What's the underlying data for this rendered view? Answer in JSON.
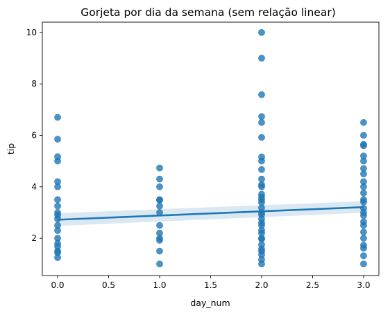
{
  "chart_data": {
    "type": "scatter",
    "title": "Gorjeta por dia da semana (sem relação linear)",
    "xlabel": "day_num",
    "ylabel": "tip",
    "xlim": [
      -0.15,
      3.15
    ],
    "ylim": [
      0.55,
      10.4
    ],
    "xticks": [
      0.0,
      0.5,
      1.0,
      1.5,
      2.0,
      2.5,
      3.0
    ],
    "xtick_labels": [
      "0.0",
      "0.5",
      "1.0",
      "1.5",
      "2.0",
      "2.5",
      "3.0"
    ],
    "yticks": [
      2,
      4,
      6,
      8,
      10
    ],
    "ytick_labels": [
      "2",
      "4",
      "6",
      "8",
      "10"
    ],
    "grid": false,
    "legend": "none",
    "colors": {
      "points": "#1f77b4",
      "line": "#1f77b4",
      "band": "#1f77b4"
    },
    "points": [
      {
        "x": 0,
        "y": 6.7
      },
      {
        "x": 0,
        "y": 5.85
      },
      {
        "x": 0,
        "y": 5.17
      },
      {
        "x": 0,
        "y": 5.0
      },
      {
        "x": 0,
        "y": 4.2
      },
      {
        "x": 0,
        "y": 4.0
      },
      {
        "x": 0,
        "y": 3.5
      },
      {
        "x": 0,
        "y": 3.25
      },
      {
        "x": 0,
        "y": 3.0
      },
      {
        "x": 0,
        "y": 2.9
      },
      {
        "x": 0,
        "y": 2.75
      },
      {
        "x": 0,
        "y": 2.5
      },
      {
        "x": 0,
        "y": 2.3
      },
      {
        "x": 0,
        "y": 2.0
      },
      {
        "x": 0,
        "y": 1.8
      },
      {
        "x": 0,
        "y": 1.68
      },
      {
        "x": 0,
        "y": 1.5
      },
      {
        "x": 0,
        "y": 1.44
      },
      {
        "x": 0,
        "y": 1.25
      },
      {
        "x": 1,
        "y": 4.73
      },
      {
        "x": 1,
        "y": 4.3
      },
      {
        "x": 1,
        "y": 4.0
      },
      {
        "x": 1,
        "y": 3.5
      },
      {
        "x": 1,
        "y": 3.48
      },
      {
        "x": 1,
        "y": 3.25
      },
      {
        "x": 1,
        "y": 3.0
      },
      {
        "x": 1,
        "y": 2.5
      },
      {
        "x": 1,
        "y": 2.2
      },
      {
        "x": 1,
        "y": 2.0
      },
      {
        "x": 1,
        "y": 1.92
      },
      {
        "x": 1,
        "y": 1.5
      },
      {
        "x": 1,
        "y": 1.0
      },
      {
        "x": 2,
        "y": 10.0
      },
      {
        "x": 2,
        "y": 9.0
      },
      {
        "x": 2,
        "y": 7.58
      },
      {
        "x": 2,
        "y": 6.73
      },
      {
        "x": 2,
        "y": 6.5
      },
      {
        "x": 2,
        "y": 5.92
      },
      {
        "x": 2,
        "y": 5.16
      },
      {
        "x": 2,
        "y": 5.0
      },
      {
        "x": 2,
        "y": 4.67
      },
      {
        "x": 2,
        "y": 4.3
      },
      {
        "x": 2,
        "y": 4.08
      },
      {
        "x": 2,
        "y": 4.0
      },
      {
        "x": 2,
        "y": 3.71
      },
      {
        "x": 2,
        "y": 3.6
      },
      {
        "x": 2,
        "y": 3.5
      },
      {
        "x": 2,
        "y": 3.39
      },
      {
        "x": 2,
        "y": 3.18
      },
      {
        "x": 2,
        "y": 3.0
      },
      {
        "x": 2,
        "y": 2.92
      },
      {
        "x": 2,
        "y": 2.75
      },
      {
        "x": 2,
        "y": 2.6
      },
      {
        "x": 2,
        "y": 2.5
      },
      {
        "x": 2,
        "y": 2.31
      },
      {
        "x": 2,
        "y": 2.2
      },
      {
        "x": 2,
        "y": 2.0
      },
      {
        "x": 2,
        "y": 1.97
      },
      {
        "x": 2,
        "y": 1.75
      },
      {
        "x": 2,
        "y": 1.58
      },
      {
        "x": 2,
        "y": 1.5
      },
      {
        "x": 2,
        "y": 1.36
      },
      {
        "x": 2,
        "y": 1.17
      },
      {
        "x": 2,
        "y": 1.0
      },
      {
        "x": 3,
        "y": 6.5
      },
      {
        "x": 3,
        "y": 6.0
      },
      {
        "x": 3,
        "y": 5.65
      },
      {
        "x": 3,
        "y": 5.6
      },
      {
        "x": 3,
        "y": 5.2
      },
      {
        "x": 3,
        "y": 5.0
      },
      {
        "x": 3,
        "y": 4.71
      },
      {
        "x": 3,
        "y": 4.5
      },
      {
        "x": 3,
        "y": 4.2
      },
      {
        "x": 3,
        "y": 4.0
      },
      {
        "x": 3,
        "y": 3.76
      },
      {
        "x": 3,
        "y": 3.5
      },
      {
        "x": 3,
        "y": 3.41
      },
      {
        "x": 3,
        "y": 3.16
      },
      {
        "x": 3,
        "y": 3.0
      },
      {
        "x": 3,
        "y": 2.88
      },
      {
        "x": 3,
        "y": 2.64
      },
      {
        "x": 3,
        "y": 2.5
      },
      {
        "x": 3,
        "y": 2.24
      },
      {
        "x": 3,
        "y": 2.0
      },
      {
        "x": 3,
        "y": 1.73
      },
      {
        "x": 3,
        "y": 1.61
      },
      {
        "x": 3,
        "y": 1.32
      },
      {
        "x": 3,
        "y": 1.0
      }
    ],
    "regression": {
      "x": [
        0,
        3
      ],
      "y": [
        2.72,
        3.21
      ],
      "ci_lower": [
        2.48,
        2.99
      ],
      "ci_upper": [
        2.97,
        3.44
      ]
    }
  }
}
